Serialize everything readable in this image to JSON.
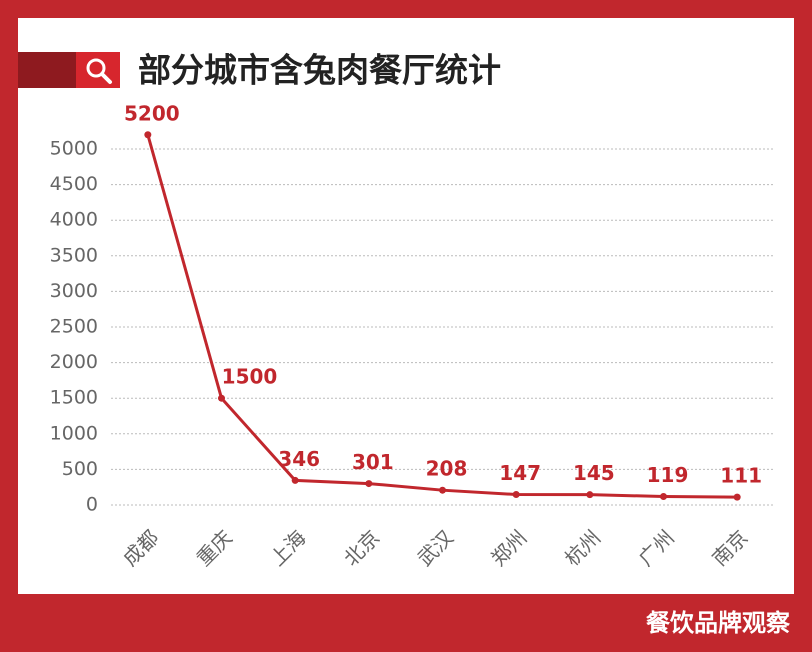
{
  "chart_data": {
    "type": "line",
    "title": "部分城市含兔肉餐厅统计",
    "categories": [
      "成都",
      "重庆",
      "上海",
      "北京",
      "武汉",
      "郑州",
      "杭州",
      "广州",
      "南京"
    ],
    "values": [
      5200,
      1500,
      346,
      301,
      208,
      147,
      145,
      119,
      111
    ],
    "color": "#c1272d",
    "ylim": [
      0,
      5000
    ],
    "yticks": [
      0,
      500,
      1000,
      1500,
      2000,
      2500,
      3000,
      3500,
      4000,
      4500,
      5000
    ],
    "grid": true
  },
  "watermark": "餐饮品牌观察"
}
